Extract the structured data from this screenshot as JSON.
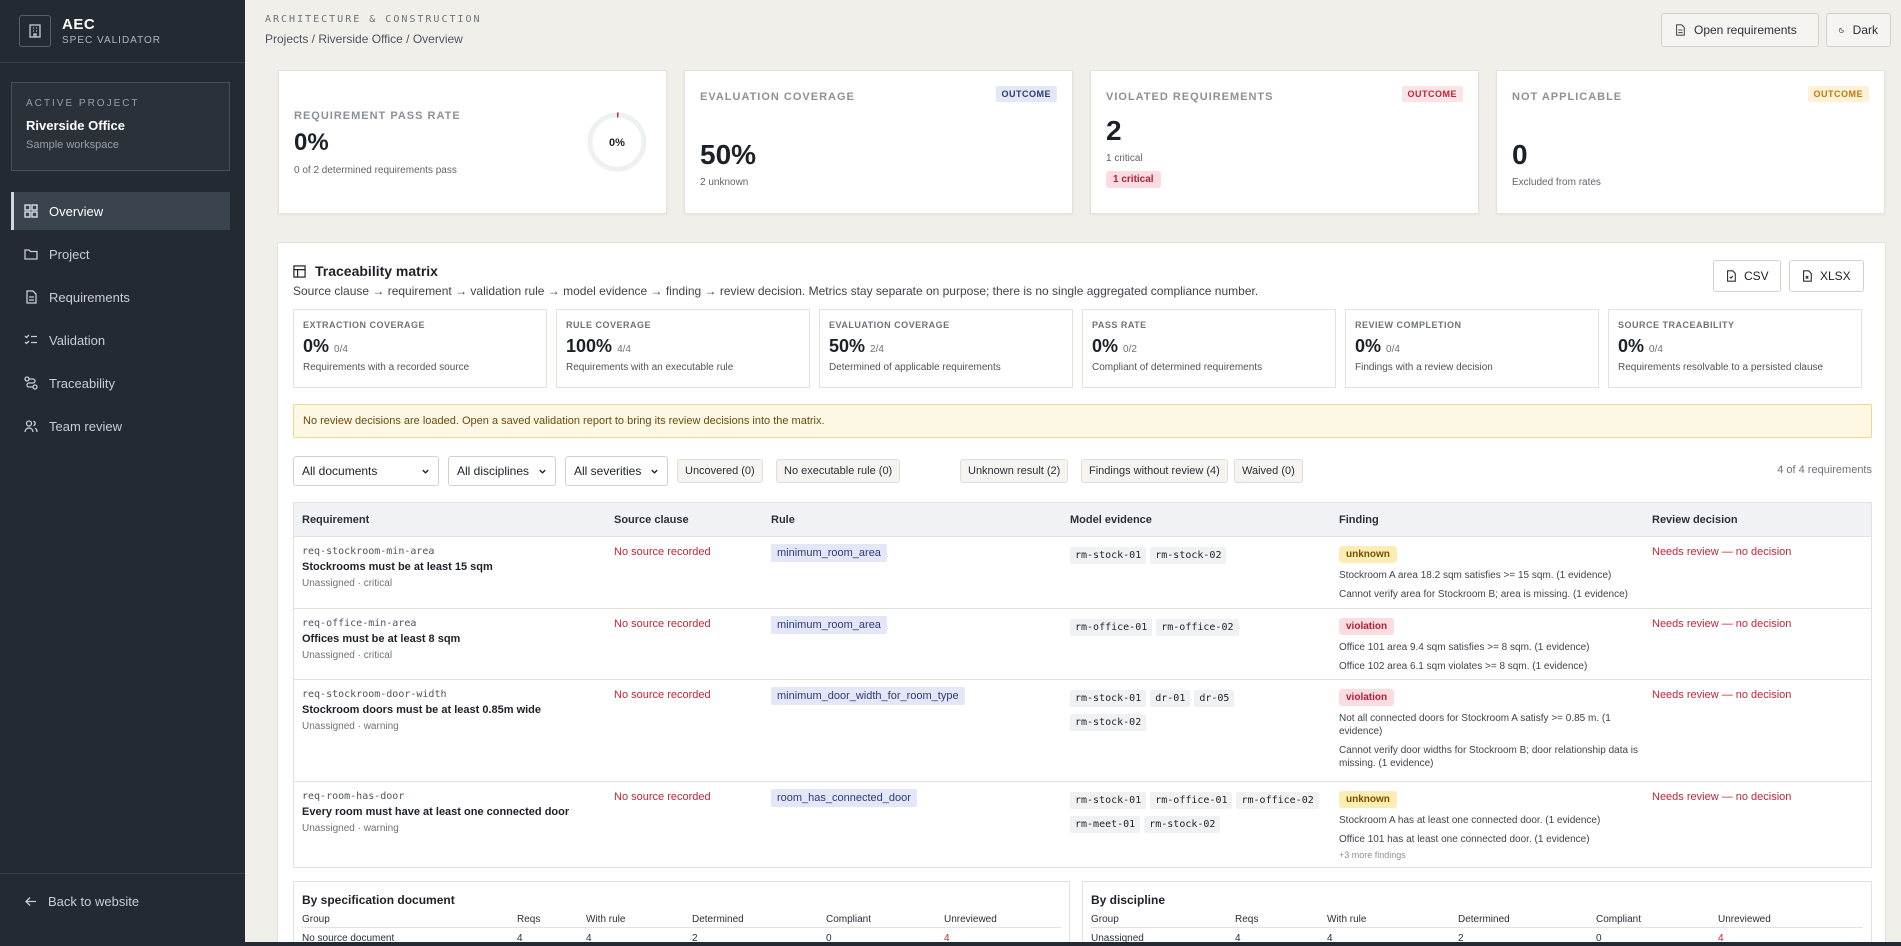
{
  "brand": {
    "name": "AEC",
    "sub": "SPEC VALIDATOR"
  },
  "project_card": {
    "label": "ACTIVE PROJECT",
    "name": "Riverside Office",
    "sub": "Sample workspace"
  },
  "nav": [
    {
      "label": "Overview",
      "icon": "grid-icon"
    },
    {
      "label": "Project",
      "icon": "folder-icon"
    },
    {
      "label": "Requirements",
      "icon": "document-icon"
    },
    {
      "label": "Validation",
      "icon": "checklist-icon"
    },
    {
      "label": "Traceability",
      "icon": "trace-icon"
    },
    {
      "label": "Team review",
      "icon": "team-icon"
    }
  ],
  "back_link": "Back to website",
  "header": {
    "section": "ARCHITECTURE & CONSTRUCTION",
    "breadcrumb": "Projects / Riverside Office / Overview",
    "open_requirements": "Open requirements",
    "theme_toggle": "Dark"
  },
  "kpis": {
    "pass_rate": {
      "label": "REQUIREMENT PASS RATE",
      "value": "0%",
      "sub": "0 of 2 determined requirements pass",
      "donut_label": "0%",
      "fraction": 0
    },
    "coverage": {
      "label": "EVALUATION COVERAGE",
      "badge": "OUTCOME",
      "value": "50%",
      "sub": "2 unknown"
    },
    "violated": {
      "label": "VIOLATED REQUIREMENTS",
      "badge": "OUTCOME",
      "value": "2",
      "sub": "1 critical",
      "pill": "1 critical"
    },
    "not_applicable": {
      "label": "NOT APPLICABLE",
      "badge": "OUTCOME",
      "value": "0",
      "sub": "Excluded from rates"
    }
  },
  "colors": {
    "badge_blue": "#e3e8f4",
    "badge_red": "#fbe3e6",
    "badge_amber": "#fdf1d8",
    "unknown_bg": "#fcecb6",
    "violation_bg": "#fbdde1",
    "accent_red": "#c0263a"
  },
  "matrix": {
    "title": "Traceability matrix",
    "description": "Source clause → requirement → validation rule → model evidence → finding → review decision. Metrics stay separate on purpose; there is no single aggregated compliance number.",
    "export_csv": "CSV",
    "export_xlsx": "XLSX",
    "metrics": [
      {
        "label": "EXTRACTION COVERAGE",
        "value": "0%",
        "fraction": "0/4",
        "desc": "Requirements with a recorded source"
      },
      {
        "label": "RULE COVERAGE",
        "value": "100%",
        "fraction": "4/4",
        "desc": "Requirements with an executable rule"
      },
      {
        "label": "EVALUATION COVERAGE",
        "value": "50%",
        "fraction": "2/4",
        "desc": "Determined of applicable requirements"
      },
      {
        "label": "PASS RATE",
        "value": "0%",
        "fraction": "0/2",
        "desc": "Compliant of determined requirements"
      },
      {
        "label": "REVIEW COMPLETION",
        "value": "0%",
        "fraction": "0/4",
        "desc": "Findings with a review decision"
      },
      {
        "label": "SOURCE TRACEABILITY",
        "value": "0%",
        "fraction": "0/4",
        "desc": "Requirements resolvable to a persisted clause"
      }
    ],
    "alert": "No review decisions are loaded. Open a saved validation report to bring its review decisions into the matrix.",
    "filters": {
      "documents": "All documents",
      "disciplines": "All disciplines",
      "severities": "All severities",
      "chips": [
        "Uncovered (0)",
        "No executable rule (0)",
        "Unknown result (2)",
        "Findings without review (4)",
        "Waived (0)"
      ],
      "count": "4 of 4 requirements"
    },
    "columns": [
      "Requirement",
      "Source clause",
      "Rule",
      "Model evidence",
      "Finding",
      "Review decision"
    ],
    "rows": [
      {
        "id": "req-stockroom-min-area",
        "title": "Stockrooms must be at least 15 sqm",
        "meta": "Unassigned · critical",
        "source": "No source recorded",
        "rule": "minimum_room_area",
        "evidence": [
          "rm-stock-01",
          "rm-stock-02"
        ],
        "status": "unknown",
        "findings": [
          "Stockroom A area 18.2 sqm satisfies >= 15 sqm. (1 evidence)",
          "Cannot verify area for Stockroom B; area is missing. (1 evidence)"
        ],
        "more": "",
        "review": "Needs review — no decision"
      },
      {
        "id": "req-office-min-area",
        "title": "Offices must be at least 8 sqm",
        "meta": "Unassigned · critical",
        "source": "No source recorded",
        "rule": "minimum_room_area",
        "evidence": [
          "rm-office-01",
          "rm-office-02"
        ],
        "status": "violation",
        "findings": [
          "Office 101 area 9.4 sqm satisfies >= 8 sqm. (1 evidence)",
          "Office 102 area 6.1 sqm violates >= 8 sqm. (1 evidence)"
        ],
        "more": "",
        "review": "Needs review — no decision"
      },
      {
        "id": "req-stockroom-door-width",
        "title": "Stockroom doors must be at least 0.85m wide",
        "meta": "Unassigned · warning",
        "source": "No source recorded",
        "rule": "minimum_door_width_for_room_type",
        "evidence": [
          "rm-stock-01",
          "dr-01",
          "dr-05",
          "rm-stock-02"
        ],
        "status": "violation",
        "findings": [
          "Not all connected doors for Stockroom A satisfy >= 0.85 m. (1 evidence)",
          "Cannot verify door widths for Stockroom B; door relationship data is missing. (1 evidence)"
        ],
        "more": "",
        "review": "Needs review — no decision"
      },
      {
        "id": "req-room-has-door",
        "title": "Every room must have at least one connected door",
        "meta": "Unassigned · warning",
        "source": "No source recorded",
        "rule": "room_has_connected_door",
        "evidence": [
          "rm-stock-01",
          "rm-office-01",
          "rm-office-02",
          "rm-meet-01",
          "rm-stock-02"
        ],
        "status": "unknown",
        "findings": [
          "Stockroom A has at least one connected door. (1 evidence)",
          "Office 101 has at least one connected door. (1 evidence)"
        ],
        "more": "+3 more findings",
        "review": "Needs review — no decision"
      }
    ],
    "group_by_doc": {
      "title": "By specification document",
      "columns": [
        "Group",
        "Reqs",
        "With rule",
        "Determined",
        "Compliant",
        "Unreviewed"
      ],
      "row": [
        "No source document",
        "4",
        "4",
        "2",
        "0",
        "4"
      ]
    },
    "group_by_disc": {
      "title": "By discipline",
      "columns": [
        "Group",
        "Reqs",
        "With rule",
        "Determined",
        "Compliant",
        "Unreviewed"
      ],
      "row": [
        "Unassigned",
        "4",
        "4",
        "2",
        "0",
        "4"
      ]
    }
  }
}
